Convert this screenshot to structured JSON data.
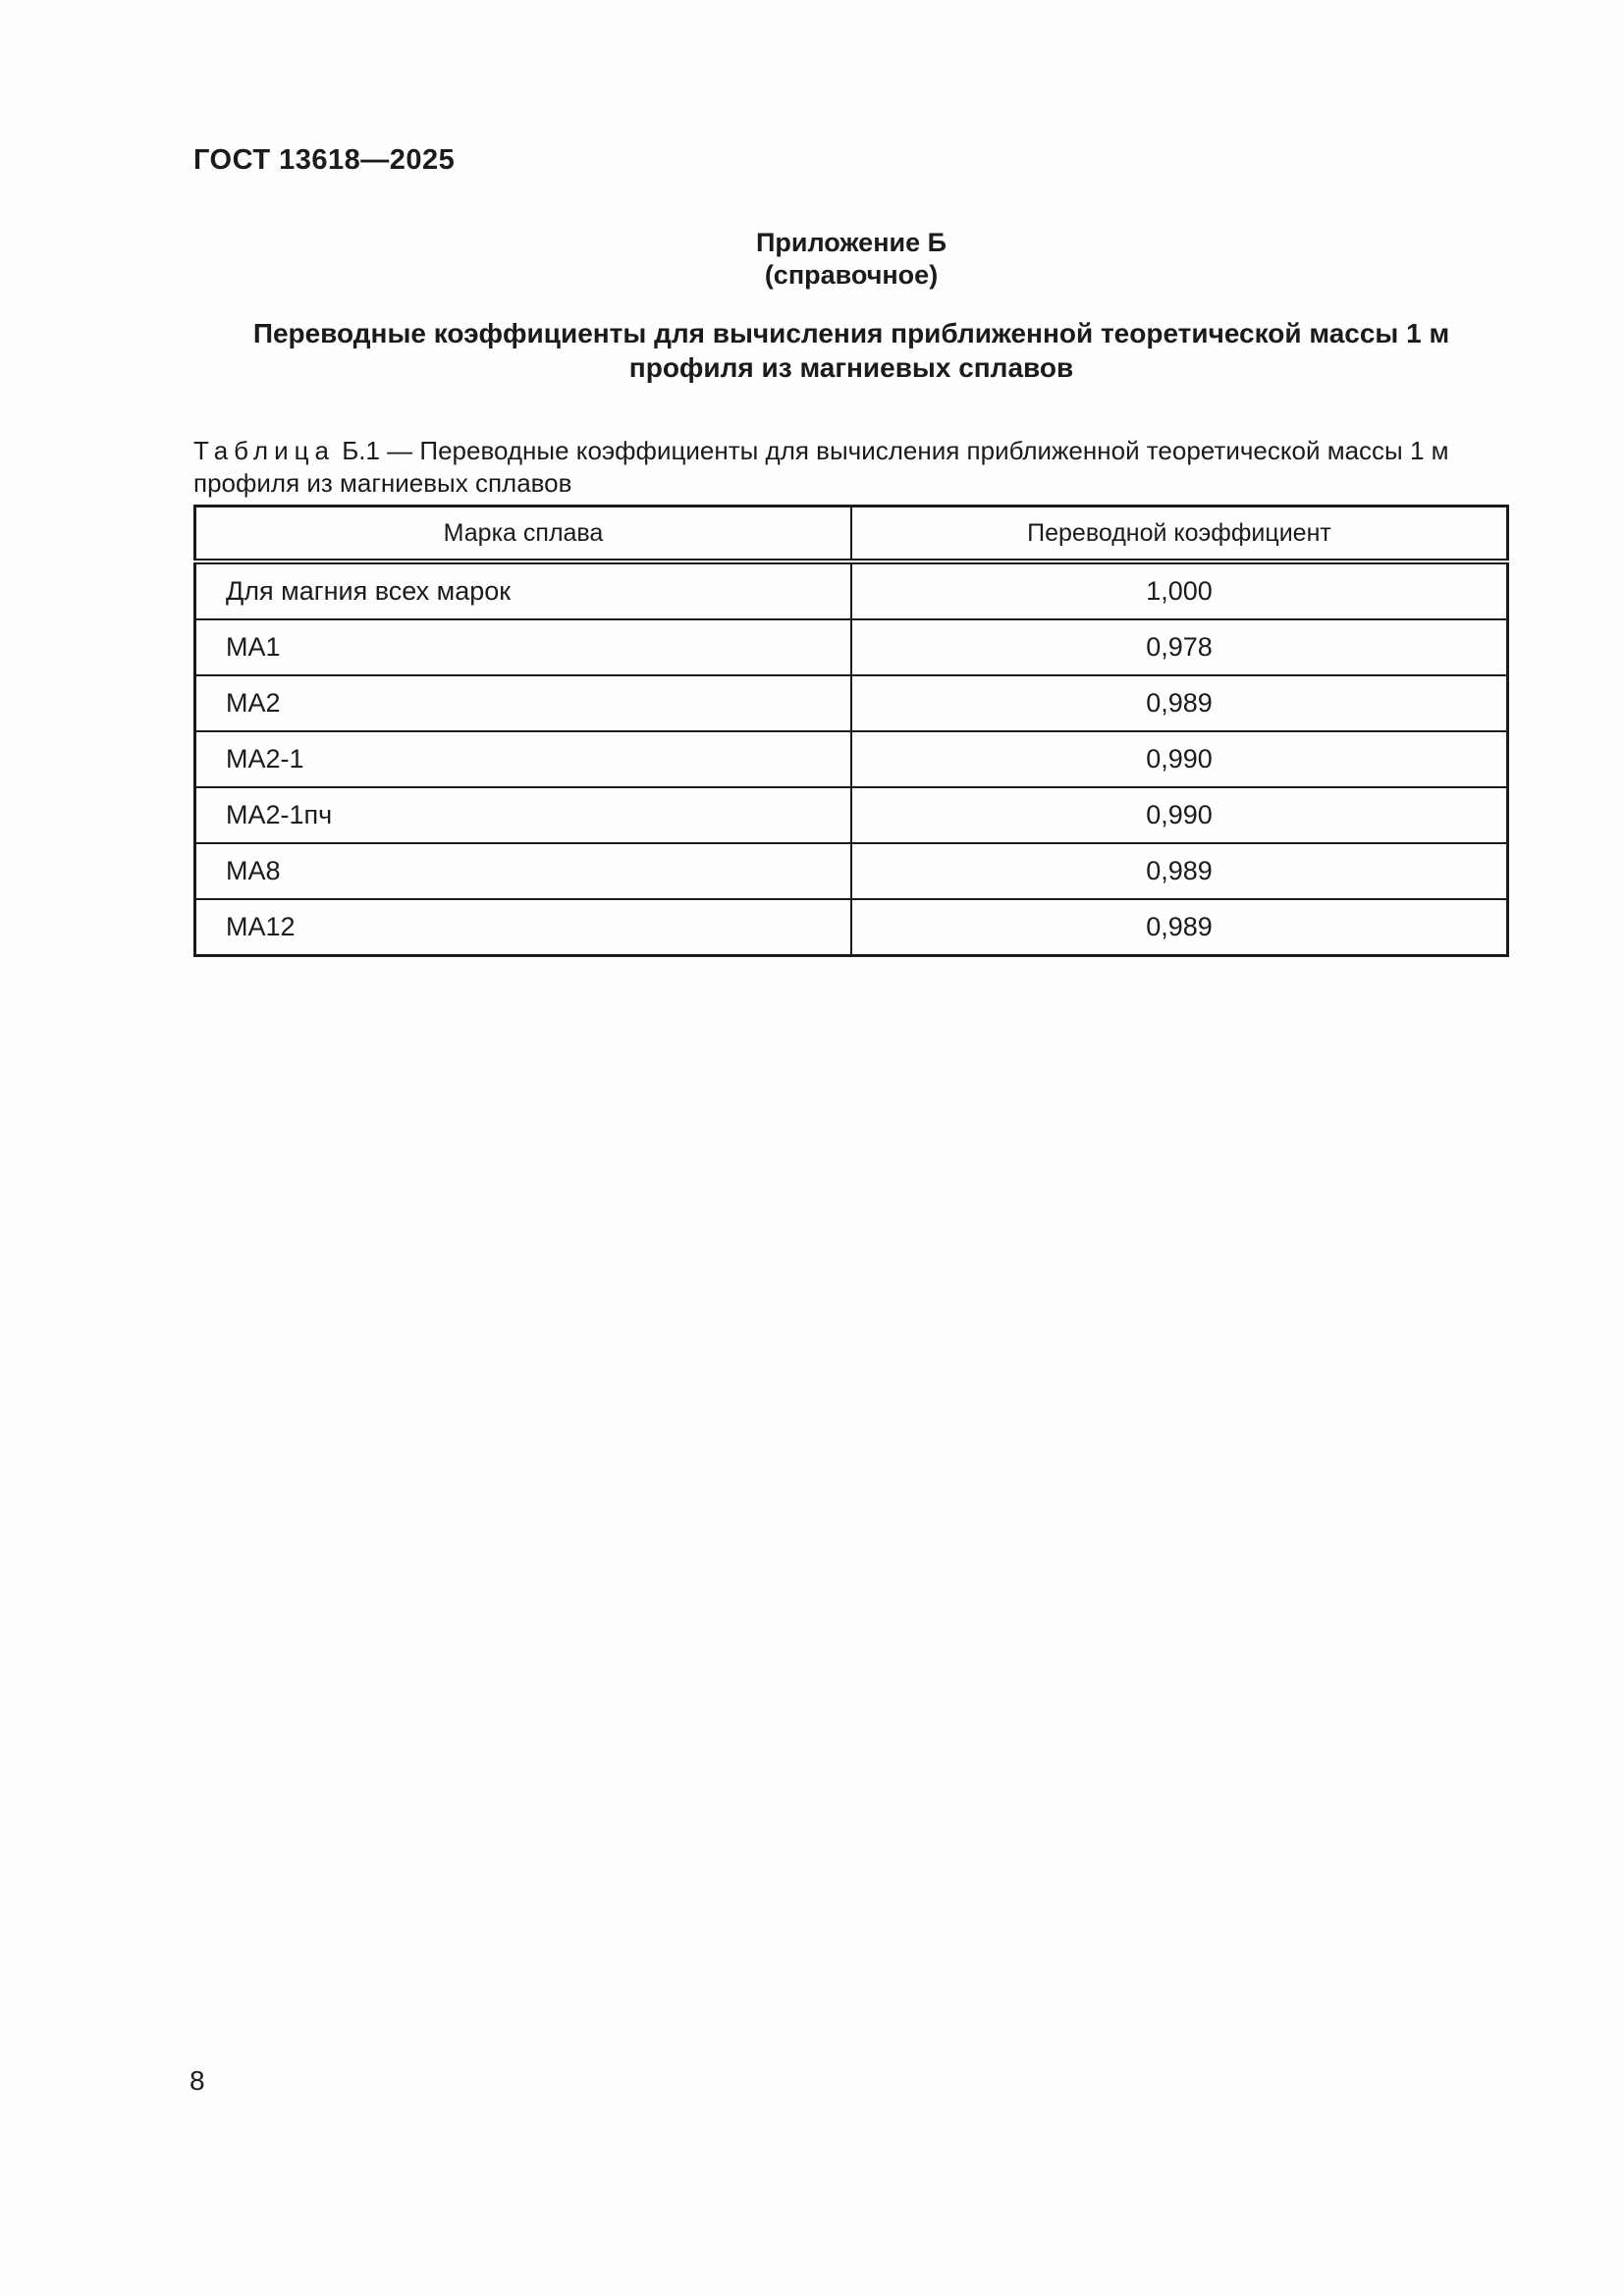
{
  "page": {
    "header": "ГОСТ 13618—2025",
    "page_number": "8"
  },
  "appendix": {
    "label": "Приложение Б",
    "kind": "(справочное)",
    "title_lines": [
      "Переводные коэффициенты для вычисления приближенной теоретической массы 1 м",
      "профиля из магниевых сплавов"
    ]
  },
  "table": {
    "caption": {
      "label": "Таблица",
      "number": "Б.1",
      "text": "— Переводные коэффициенты для вычисления приближенной теоретической массы 1 м профиля из магниевых сплавов"
    },
    "columns": [
      "Марка сплава",
      "Переводной коэффициент"
    ],
    "rows": [
      {
        "alloy": "Для магния всех марок",
        "coefficient": "1,000"
      },
      {
        "alloy": "МА1",
        "coefficient": "0,978"
      },
      {
        "alloy": "МА2",
        "coefficient": "0,989"
      },
      {
        "alloy": "МА2-1",
        "coefficient": "0,990"
      },
      {
        "alloy": "МА2-1пч",
        "coefficient": "0,990"
      },
      {
        "alloy": "МА8",
        "coefficient": "0,989"
      },
      {
        "alloy": "МА12",
        "coefficient": "0,989"
      }
    ]
  }
}
